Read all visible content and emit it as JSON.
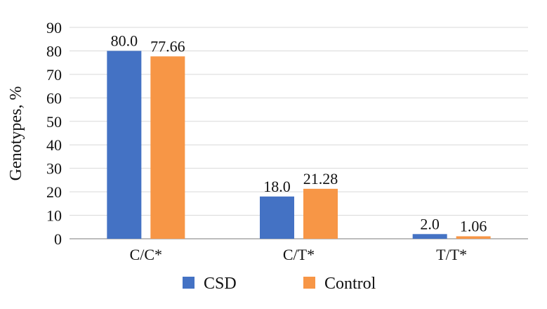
{
  "chart_data": {
    "type": "bar",
    "categories": [
      "C/C*",
      "C/T*",
      "T/T*"
    ],
    "series": [
      {
        "name": "CSD",
        "values": [
          80.0,
          18.0,
          2.0
        ],
        "labels": [
          "80.0",
          "18.0",
          "2.0"
        ],
        "color": "#4472C4"
      },
      {
        "name": "Control",
        "values": [
          77.66,
          21.28,
          1.06
        ],
        "labels": [
          "77.66",
          "21.28",
          "1.06"
        ],
        "color": "#F79646"
      }
    ],
    "title": "",
    "xlabel": "",
    "ylabel": "Genotypes, %",
    "ylim": [
      0,
      90
    ],
    "yticks": [
      "0",
      "10",
      "20",
      "30",
      "40",
      "50",
      "60",
      "70",
      "80",
      "90"
    ],
    "grid": true,
    "legend": "bottom"
  }
}
